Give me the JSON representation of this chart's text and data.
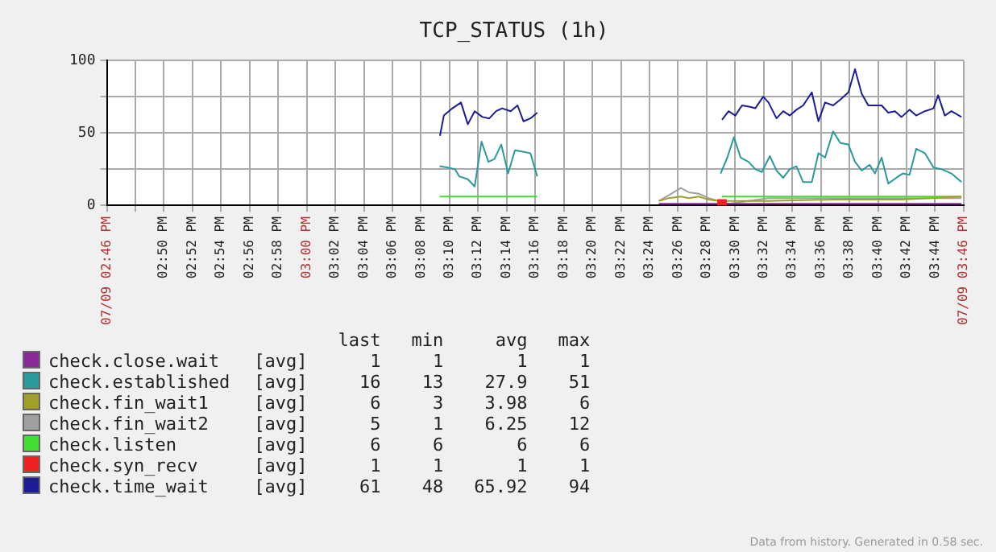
{
  "chart_data": {
    "type": "line",
    "title": "TCP_STATUS (1h)",
    "xlim": [
      14.7667,
      15.7667
    ],
    "xticks": [
      {
        "value": 14.7667,
        "label": "07/09 02:46 PM"
      },
      {
        "value": 14.8,
        "label": null
      },
      {
        "value": 14.8333,
        "label": "02:50 PM"
      },
      {
        "value": 14.8667,
        "label": "02:52 PM"
      },
      {
        "value": 14.9,
        "label": "02:54 PM"
      },
      {
        "value": 14.9333,
        "label": "02:56 PM"
      },
      {
        "value": 14.9667,
        "label": "02:58 PM"
      },
      {
        "value": 15,
        "label": "03:00 PM"
      },
      {
        "value": 15.0333,
        "label": "03:02 PM"
      },
      {
        "value": 15.0667,
        "label": "03:04 PM"
      },
      {
        "value": 15.1,
        "label": "03:06 PM"
      },
      {
        "value": 15.1333,
        "label": "03:08 PM"
      },
      {
        "value": 15.1667,
        "label": "03:10 PM"
      },
      {
        "value": 15.2,
        "label": "03:12 PM"
      },
      {
        "value": 15.2333,
        "label": "03:14 PM"
      },
      {
        "value": 15.2667,
        "label": "03:16 PM"
      },
      {
        "value": 15.3,
        "label": "03:18 PM"
      },
      {
        "value": 15.3333,
        "label": "03:20 PM"
      },
      {
        "value": 15.3667,
        "label": "03:22 PM"
      },
      {
        "value": 15.4,
        "label": "03:24 PM"
      },
      {
        "value": 15.4333,
        "label": "03:26 PM"
      },
      {
        "value": 15.4667,
        "label": "03:28 PM"
      },
      {
        "value": 15.5,
        "label": "03:30 PM"
      },
      {
        "value": 15.5333,
        "label": "03:32 PM"
      },
      {
        "value": 15.5667,
        "label": "03:34 PM"
      },
      {
        "value": 15.6,
        "label": "03:36 PM"
      },
      {
        "value": 15.6333,
        "label": "03:38 PM"
      },
      {
        "value": 15.6667,
        "label": "03:40 PM"
      },
      {
        "value": 15.7,
        "label": "03:42 PM"
      },
      {
        "value": 15.7333,
        "label": "03:44 PM"
      },
      {
        "value": 15.7667,
        "label": "07/09 03:46 PM"
      }
    ],
    "ylim": [
      0,
      100
    ],
    "yticks": [
      0,
      {
        "value": 25,
        "label": null
      },
      50,
      {
        "value": 75,
        "label": null
      },
      100
    ],
    "grid": true,
    "legend": "bottom",
    "marker": "none",
    "line_style": "solid",
    "annotations": [
      "last min avg max",
      "[avg] 1 1 1 1",
      "[avg] 16 13 27.9 51",
      "[avg] 6 3 3.98 6",
      "[avg] 5 1 6.25 12",
      "[avg] 6 6 6 6",
      "[avg] 1 1 1 1",
      "[avg] 61 48 65.92 94",
      "Data from history. Generated in 0.58 sec."
    ],
    "series": [
      {
        "name": "check.close.wait",
        "color": "#8a2a9a",
        "x": [
          15.4109,
          15.764
        ],
        "values": [
          1,
          1
        ]
      },
      {
        "name": "check.established",
        "color": "#2a9a9a",
        "x": [
          15.155,
          15.165,
          15.173,
          15.178,
          15.188,
          15.196,
          15.204,
          15.212,
          15.219,
          15.227,
          15.235,
          15.243,
          15.252,
          15.261,
          15.269,
          15.35,
          15.483,
          15.4908,
          15.4985,
          15.5063,
          15.5156,
          15.5234,
          15.5311,
          15.5404,
          15.5482,
          15.556,
          15.5637,
          15.5715,
          15.5793,
          15.5894,
          15.5971,
          15.6049,
          15.6142,
          15.6227,
          15.6321,
          15.6398,
          15.6476,
          15.6569,
          15.6631,
          15.6708,
          15.6786,
          15.6879,
          15.6957,
          15.7034,
          15.7112,
          15.7213,
          15.7314,
          15.7407,
          15.7523,
          15.764
        ],
        "values": [
          27,
          26,
          25,
          20,
          18,
          13,
          44,
          30,
          32,
          42,
          22,
          38,
          37,
          36,
          20,
          null,
          22,
          33,
          47,
          33,
          30,
          25,
          23,
          34,
          24,
          19,
          25,
          27,
          16,
          16,
          36,
          33,
          51,
          43,
          42,
          30,
          24,
          28,
          22,
          33,
          15,
          19,
          22,
          21,
          39,
          36,
          26,
          25,
          22,
          16
        ]
      },
      {
        "name": "check.fin_wait1",
        "color": "#a0a028",
        "x": [
          15.4109,
          15.4225,
          15.4365,
          15.4458,
          15.4574,
          15.4691,
          15.4807,
          15.5389,
          15.6165,
          15.6941,
          15.764
        ],
        "values": [
          3,
          5,
          6,
          5,
          6,
          4,
          3,
          3,
          4,
          4,
          6
        ]
      },
      {
        "name": "check.fin_wait2",
        "color": "#a0a0a0",
        "x": [
          15.4109,
          15.4225,
          15.4365,
          15.4458,
          15.4574,
          15.4691,
          15.4807,
          15.4923,
          15.5389,
          15.6165,
          15.6941,
          15.764
        ],
        "values": [
          3,
          7,
          12,
          9,
          8,
          5,
          3,
          1,
          5,
          5,
          5,
          5
        ]
      },
      {
        "name": "check.listen",
        "color": "#44dd33",
        "x": [
          15.155,
          15.269,
          15.35,
          15.4846,
          15.764
        ],
        "values": [
          6,
          6,
          null,
          6,
          6
        ]
      },
      {
        "name": "check.syn_recv",
        "color": "#ee2222",
        "marker": "square",
        "x": [
          15.4846
        ],
        "values": [
          1
        ]
      },
      {
        "name": "check.time_wait",
        "color": "#1c1c96",
        "x": [
          15.1555,
          15.16,
          15.17,
          15.18,
          15.188,
          15.196,
          15.205,
          15.213,
          15.221,
          15.228,
          15.238,
          15.246,
          15.253,
          15.261,
          15.269,
          15.35,
          15.4846,
          15.4923,
          15.5001,
          15.5079,
          15.5172,
          15.5234,
          15.5327,
          15.5389,
          15.5482,
          15.556,
          15.5637,
          15.5715,
          15.5793,
          15.5894,
          15.5971,
          15.6049,
          15.6142,
          15.6227,
          15.6321,
          15.6398,
          15.6476,
          15.6553,
          15.6708,
          15.6786,
          15.6864,
          15.6941,
          15.7034,
          15.7112,
          15.7213,
          15.7314,
          15.7368,
          15.7446,
          15.7523,
          15.764
        ],
        "values": [
          48,
          62,
          67,
          71,
          56,
          65,
          61,
          60,
          65,
          67,
          65,
          69,
          58,
          60,
          64,
          null,
          59,
          65,
          62,
          69,
          68,
          67,
          75,
          71,
          60,
          65,
          62,
          66,
          69,
          78,
          58,
          71,
          69,
          73,
          78,
          94,
          77,
          69,
          69,
          64,
          65,
          61,
          66,
          62,
          65,
          67,
          76,
          62,
          65,
          61
        ]
      }
    ]
  }
}
